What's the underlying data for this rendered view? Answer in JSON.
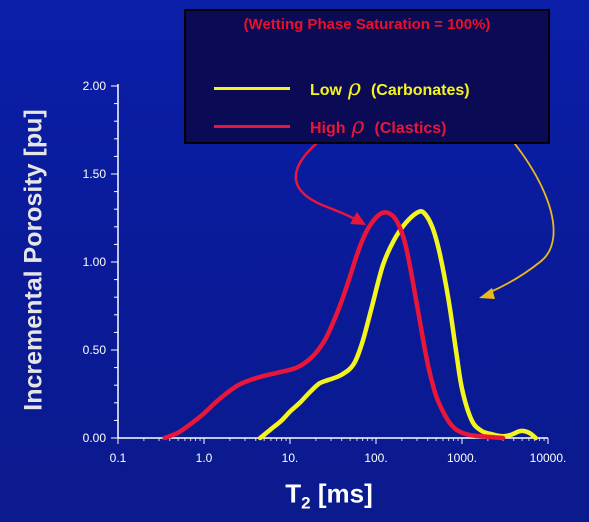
{
  "chart_data": {
    "type": "line",
    "title": "",
    "ylabel": "Incremental Porosity [pu]",
    "xlabel_main": "T",
    "xlabel_sub": "2",
    "xlabel_unit": "[ms]",
    "xscale": "log",
    "xlim": [
      0.1,
      10000
    ],
    "ylim": [
      0,
      2.0
    ],
    "x_ticks": [
      0.1,
      1,
      10,
      100,
      1000,
      10000
    ],
    "x_tick_labels": [
      "0.1",
      "1.0",
      "10.",
      "100.",
      "1000.",
      "10000."
    ],
    "y_ticks": [
      0,
      0.5,
      1.0,
      1.5,
      2.0
    ],
    "y_tick_labels": [
      "0.00",
      "0.50",
      "1.00",
      "1.50",
      "2.00"
    ],
    "legend": {
      "heading": "(Wetting Phase Saturation = 100%)",
      "placement": "top-right"
    },
    "series": [
      {
        "label_main": "Low",
        "label_symbol": "ρ",
        "label_paren": "(Carbonates)",
        "color": "#f5f51e",
        "x": [
          4.5,
          6,
          8,
          10,
          13,
          17,
          22,
          28,
          40,
          55,
          70,
          90,
          120,
          160,
          220,
          300,
          360,
          450,
          550,
          700,
          850,
          1000,
          1300,
          1700,
          2300,
          3000,
          3800,
          4800,
          6000,
          7200
        ],
        "y": [
          0.0,
          0.05,
          0.1,
          0.15,
          0.2,
          0.26,
          0.31,
          0.33,
          0.36,
          0.42,
          0.55,
          0.75,
          0.98,
          1.12,
          1.22,
          1.28,
          1.28,
          1.2,
          1.05,
          0.78,
          0.5,
          0.28,
          0.1,
          0.04,
          0.02,
          0.01,
          0.02,
          0.04,
          0.03,
          0.0
        ]
      },
      {
        "label_main": "High",
        "label_symbol": "ρ",
        "label_paren": "(Clastics)",
        "color": "#e8173a",
        "x": [
          0.35,
          0.5,
          0.7,
          1.0,
          1.5,
          2.5,
          4,
          7,
          12,
          18,
          25,
          32,
          40,
          50,
          60,
          75,
          95,
          120,
          150,
          180,
          220,
          270,
          330,
          400,
          500,
          650,
          800,
          1000,
          1300,
          1700,
          2200,
          3000
        ],
        "y": [
          0.0,
          0.03,
          0.08,
          0.14,
          0.22,
          0.3,
          0.34,
          0.37,
          0.4,
          0.46,
          0.55,
          0.66,
          0.78,
          0.92,
          1.04,
          1.16,
          1.24,
          1.28,
          1.27,
          1.22,
          1.1,
          0.88,
          0.64,
          0.42,
          0.24,
          0.12,
          0.06,
          0.03,
          0.015,
          0.01,
          0.005,
          0.0
        ]
      }
    ],
    "annotation_arrows": [
      {
        "color": "#e8173a"
      },
      {
        "color": "#e8b81e"
      }
    ]
  }
}
